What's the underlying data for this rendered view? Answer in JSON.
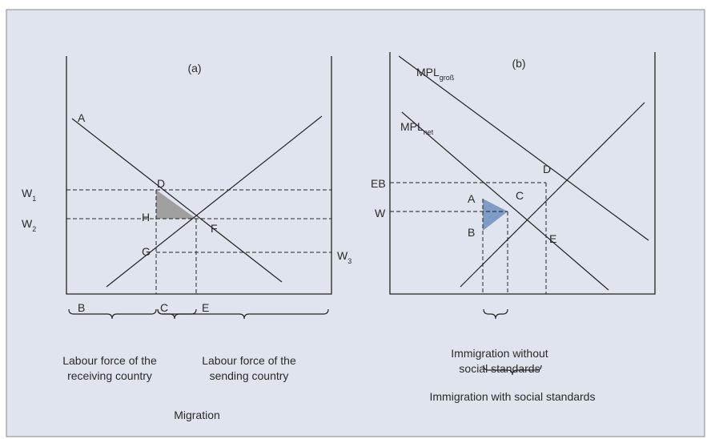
{
  "panel_a": {
    "title": "(a)",
    "points": [
      "A",
      "D",
      "H",
      "F",
      "G",
      "B",
      "C",
      "E"
    ],
    "wages": [
      {
        "letter": "W",
        "sub": "1"
      },
      {
        "letter": "W",
        "sub": "2"
      },
      {
        "letter": "W",
        "sub": "3"
      }
    ],
    "receiving": [
      "Labour force of the",
      "receiving country"
    ],
    "sending": [
      "Labour force of the",
      "sending country"
    ],
    "caption": "Migration"
  },
  "panel_b": {
    "title": "(b)",
    "curves": [
      {
        "letter": "MPL",
        "sub": "groß"
      },
      {
        "letter": "MPL",
        "sub": "net"
      }
    ],
    "wages": [
      "EB",
      "W"
    ],
    "points": [
      "D",
      "A",
      "C",
      "B",
      "E"
    ],
    "without": [
      "Immigration without",
      "social standards"
    ],
    "with": "Immigration with social standards"
  }
}
